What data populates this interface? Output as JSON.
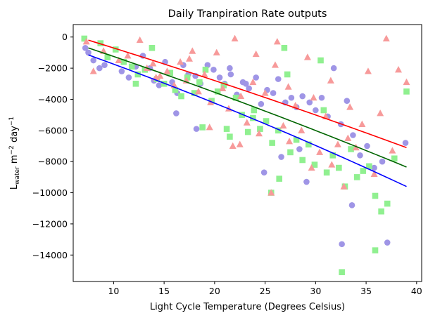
{
  "chart_data": {
    "type": "scatter",
    "title": "Daily Tranpiration Rate outputs",
    "xlabel": "Light Cycle Temperature (Degrees Celsius)",
    "ylabel_main": "L",
    "ylabel_sub": "water",
    "ylabel_unit_m": " m",
    "ylabel_exp_m": "−2",
    "ylabel_unit_day": " day",
    "ylabel_exp_day": "−1",
    "xlim": [
      6,
      40.5
    ],
    "ylim": [
      -15700,
      800
    ],
    "xticks": [
      10,
      15,
      20,
      25,
      30,
      35,
      40
    ],
    "yticks": [
      0,
      -2000,
      -4000,
      -6000,
      -8000,
      -10000,
      -12000,
      -14000
    ],
    "ytick_labels": [
      "0",
      "−2000",
      "−4000",
      "−6000",
      "−8000",
      "−10000",
      "−12000",
      "−14000"
    ],
    "grid": false,
    "colors": {
      "circle": "#9f95e6",
      "square": "#90f090",
      "triangle": "#f79a9a",
      "line_blue": "#0000ff",
      "line_green": "#006400",
      "line_red": "#ff0000"
    },
    "series": [
      {
        "marker": "circle",
        "x": [
          7.2,
          7.5,
          8.0,
          8.6,
          9.1,
          10.8,
          11.5,
          12.2,
          12.9,
          13.6,
          14.0,
          14.5,
          15.1,
          15.8,
          16.3,
          16.9,
          17.4,
          18.1,
          18.6,
          19.3,
          19.9,
          20.5,
          21.0,
          21.6,
          22.2,
          22.8,
          23.4,
          24.1,
          24.6,
          25.2,
          25.8,
          26.3,
          27.0,
          27.6,
          28.1,
          28.7,
          29.4,
          30.0,
          30.6,
          31.2,
          31.8,
          32.5,
          33.1,
          33.7,
          34.4,
          35.1,
          35.8,
          36.6,
          37.1,
          38.9,
          16.2,
          21.5,
          23.1,
          26.6,
          29.1,
          32.6,
          33.6,
          28.4,
          24.9,
          18.2
        ],
        "y": [
          -700,
          -1000,
          -1500,
          -2000,
          -1800,
          -2200,
          -2600,
          -1900,
          -1200,
          -2000,
          -2800,
          -3100,
          -1600,
          -2900,
          -3600,
          -1800,
          -2400,
          -2500,
          -3000,
          -1800,
          -2100,
          -2600,
          -3000,
          -2400,
          -3700,
          -2900,
          -3300,
          -2600,
          -4300,
          -3400,
          -3600,
          -2700,
          -4200,
          -3900,
          -4500,
          -3800,
          -4200,
          -4700,
          -3900,
          -5100,
          -2000,
          -5600,
          -4100,
          -6300,
          -7600,
          -7000,
          -8400,
          -8000,
          -13200,
          -6800,
          -4900,
          -2000,
          -3000,
          -7700,
          -9300,
          -13300,
          -10800,
          -7200,
          -8700,
          -5900
        ]
      },
      {
        "marker": "square",
        "x": [
          7.1,
          8.7,
          9.4,
          10.2,
          11.0,
          11.8,
          12.4,
          13.1,
          13.8,
          14.3,
          15.0,
          15.6,
          16.1,
          16.7,
          17.3,
          18.0,
          18.5,
          19.1,
          19.7,
          20.3,
          20.9,
          21.5,
          22.1,
          22.7,
          23.3,
          23.9,
          24.5,
          25.1,
          25.7,
          26.3,
          26.9,
          27.5,
          28.1,
          28.7,
          29.3,
          29.9,
          30.5,
          31.1,
          31.7,
          32.3,
          32.9,
          33.5,
          34.1,
          34.7,
          35.3,
          35.9,
          36.5,
          37.1,
          37.8,
          39.0,
          25.6,
          26.4,
          32.6,
          35.9,
          21.2,
          23.8,
          27.2,
          30.8,
          18.8,
          12.2
        ],
        "y": [
          -100,
          -400,
          -1300,
          -800,
          -1600,
          -1900,
          -2400,
          -2100,
          -700,
          -2700,
          -3000,
          -2300,
          -3400,
          -3800,
          -2600,
          -3600,
          -2900,
          -2100,
          -4100,
          -3500,
          -3100,
          -6400,
          -3900,
          -5000,
          -6100,
          -4700,
          -5900,
          -5400,
          -6800,
          -6000,
          -700,
          -7400,
          -6600,
          -7900,
          -6900,
          -8200,
          -1500,
          -8700,
          -7600,
          -8400,
          -9600,
          -7200,
          -9000,
          -8600,
          -8300,
          -10200,
          -11200,
          -10700,
          -7800,
          -3500,
          -10000,
          -9100,
          -15100,
          -13700,
          -5900,
          -5200,
          -2400,
          -4700,
          -5800,
          -3000
        ]
      },
      {
        "marker": "triangle",
        "x": [
          7.3,
          8.0,
          9.0,
          10.5,
          11.4,
          12.6,
          13.3,
          13.9,
          14.6,
          15.3,
          16.0,
          16.6,
          17.2,
          17.8,
          18.4,
          19.0,
          19.6,
          20.2,
          20.8,
          21.4,
          22.0,
          22.6,
          23.2,
          23.8,
          24.4,
          25.0,
          25.6,
          26.2,
          26.8,
          27.4,
          28.0,
          28.6,
          29.2,
          29.8,
          30.4,
          31.0,
          31.6,
          32.2,
          32.8,
          33.4,
          34.0,
          34.6,
          35.2,
          35.8,
          36.4,
          37.0,
          37.6,
          38.2,
          39.0,
          22.5,
          26.0,
          19.5,
          24.1,
          29.6,
          33.2,
          27.3,
          17.5,
          14.2,
          21.8,
          31.5
        ],
        "y": [
          -300,
          -2200,
          -900,
          -1500,
          -1200,
          -200,
          -2000,
          -1700,
          -2500,
          -2200,
          -3100,
          -1600,
          -2800,
          -900,
          -3500,
          -2400,
          -4200,
          -1000,
          -3300,
          -4600,
          -100,
          -3800,
          -5500,
          -2900,
          -6200,
          -3600,
          -10000,
          -300,
          -5700,
          -6700,
          -4400,
          -6000,
          -1300,
          -3900,
          -7400,
          -5100,
          -8200,
          -6900,
          -9600,
          -4500,
          -7100,
          -5600,
          -2200,
          -8800,
          -4900,
          -100,
          -7300,
          -2100,
          -2900,
          -6900,
          -1800,
          -5800,
          -1100,
          -8400,
          -6500,
          -3200,
          -1400,
          -2600,
          -7000,
          -2800
        ]
      }
    ],
    "lines": [
      {
        "color": "line_blue",
        "x": [
          7.5,
          39.0
        ],
        "y": [
          -1150,
          -9600
        ],
        "curve": 1.8
      },
      {
        "color": "line_green",
        "x": [
          7.5,
          39.0
        ],
        "y": [
          -700,
          -8350
        ],
        "curve": 1.3
      },
      {
        "color": "line_red",
        "x": [
          7.5,
          39.0
        ],
        "y": [
          -200,
          -7100
        ],
        "curve": 1.0
      }
    ]
  }
}
